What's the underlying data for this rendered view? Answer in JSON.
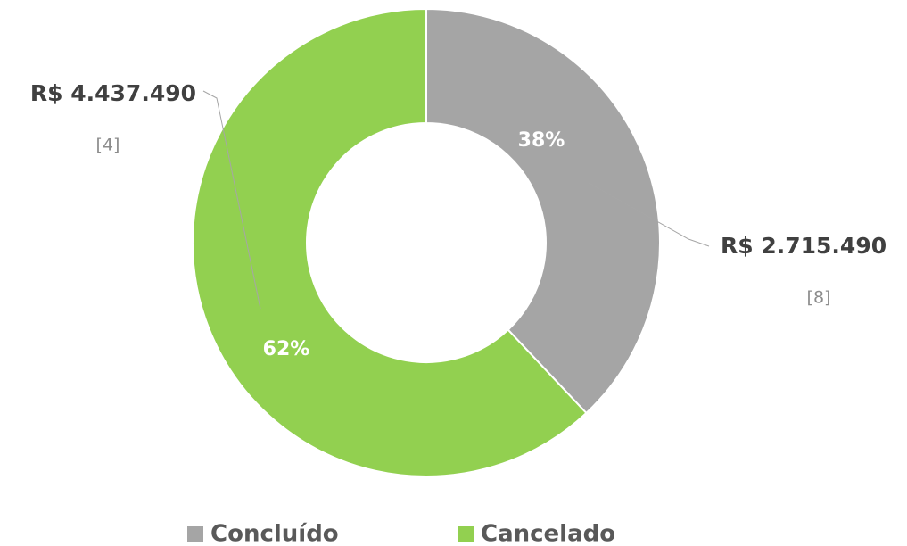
{
  "chart_data": {
    "type": "donut",
    "categories": [
      "Concluído",
      "Cancelado"
    ],
    "values": [
      38,
      62
    ],
    "value_labels": [
      "38%",
      "62%"
    ],
    "colors": [
      "#a5a5a5",
      "#92d050"
    ],
    "callouts": [
      {
        "text": "R$ 2.715.490",
        "count": "[8]"
      },
      {
        "text": "R$ 4.437.490",
        "count": "[4]"
      }
    ],
    "legend": "bottom"
  }
}
